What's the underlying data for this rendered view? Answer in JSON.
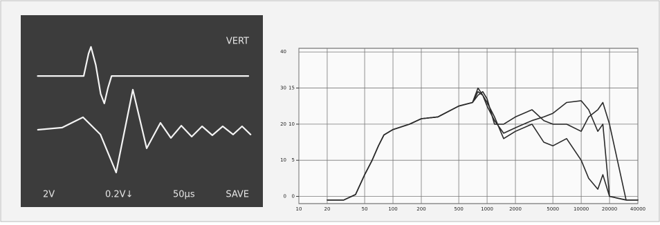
{
  "chart_data": [
    {
      "type": "scope",
      "annotations": [
        "VERT",
        "2V",
        "0.2V↓",
        "50µs",
        "SAVE"
      ],
      "xlim": [
        0,
        10
      ],
      "ylim": [
        -5,
        5
      ],
      "series": [
        {
          "color": "#f4f4f4",
          "x": [
            0.7,
            2.6,
            2.8,
            2.9,
            3.1,
            3.3,
            3.45,
            3.6,
            3.75,
            3.9,
            9.4
          ],
          "values": [
            1.83,
            1.83,
            3.0,
            3.35,
            2.4,
            0.9,
            0.4,
            1.2,
            1.83,
            1.83,
            1.83
          ]
        },
        {
          "color": "#f4f4f4",
          "x": [
            0.71,
            1.71,
            2.57,
            3.29,
            3.94,
            4.63,
            5.2,
            5.77,
            6.2,
            6.63,
            7.06,
            7.49,
            7.91,
            8.34,
            8.77,
            9.14,
            9.49
          ],
          "values": [
            -0.97,
            -0.86,
            -0.32,
            -1.22,
            -3.2,
            1.12,
            -1.94,
            -0.61,
            -1.4,
            -0.76,
            -1.33,
            -0.79,
            -1.26,
            -0.79,
            -1.22,
            -0.79,
            -1.22
          ]
        }
      ]
    },
    {
      "type": "line",
      "log_x": true,
      "grid": true,
      "xlim": [
        10,
        40000
      ],
      "ylim": [
        -2,
        41
      ],
      "y2lim": [
        -1,
        20.5
      ],
      "xticks": [
        10,
        20,
        50,
        100,
        200,
        500,
        1000,
        2000,
        5000,
        10000,
        20000,
        40000
      ],
      "yticks": [
        0,
        10,
        20,
        30,
        40
      ],
      "y2ticks": [
        0,
        5,
        10,
        15
      ],
      "x": [
        20,
        30,
        40,
        50,
        60,
        70,
        80,
        100,
        150,
        200,
        300,
        500,
        700,
        800,
        900,
        1000,
        1200,
        1500,
        2000,
        3000,
        4000,
        5000,
        7000,
        10000,
        12000,
        15000,
        17000,
        20000,
        30000,
        40000
      ],
      "series": [
        {
          "color": "#2a2a2a",
          "values": [
            -1,
            -1,
            0.5,
            6,
            10,
            14,
            17,
            18.5,
            20,
            21.5,
            22,
            25,
            26,
            30,
            28,
            25,
            21,
            17.5,
            19,
            21,
            22,
            23,
            26,
            26.5,
            24,
            18,
            20,
            0,
            -1,
            -1
          ]
        },
        {
          "color": "#2a2a2a",
          "values": [
            -1,
            -1,
            0.5,
            6,
            10,
            14,
            17,
            18.5,
            20,
            21.5,
            22,
            25,
            26,
            29,
            28,
            26,
            22,
            16,
            18,
            20,
            15,
            14,
            16,
            10,
            5,
            2,
            6,
            0,
            -1,
            -1
          ]
        },
        {
          "color": "#2a2a2a",
          "values": [
            -1,
            -1,
            0.5,
            6,
            10,
            14,
            17,
            18.5,
            20,
            21.5,
            22,
            25,
            26,
            28,
            29,
            27,
            20,
            20,
            22,
            24,
            21,
            20,
            20,
            18,
            22,
            24,
            26,
            20,
            -1,
            -1
          ]
        }
      ]
    }
  ]
}
